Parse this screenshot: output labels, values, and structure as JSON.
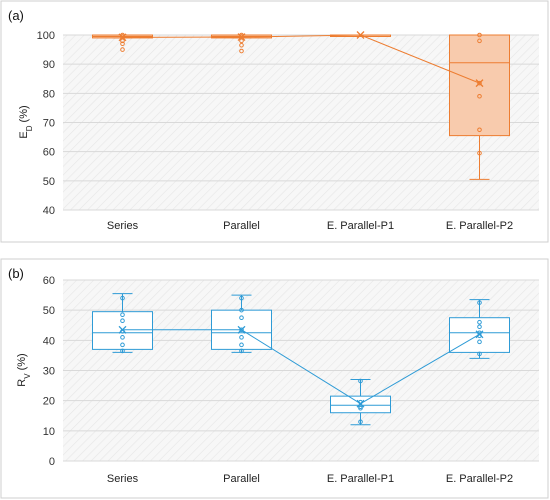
{
  "chart_data": [
    {
      "panel_label": "(a)",
      "type": "box",
      "ylabel": "E",
      "ylabel_sub": "D",
      "ylabel_unit": " (%)",
      "ylim": [
        40,
        100
      ],
      "yticks": [
        40,
        50,
        60,
        70,
        80,
        90,
        100
      ],
      "categories": [
        "Series",
        "Parallel",
        "E. Parallel-P1",
        "E. Parallel-P2"
      ],
      "color": "#ED7D31",
      "fill": "#F8CBAD",
      "grid": true,
      "boxes": [
        {
          "min": 99,
          "q1": 99,
          "median": 99.5,
          "q3": 100,
          "max": 100,
          "mean": 99.2,
          "points": [
            100,
            99.5,
            98,
            97,
            95
          ]
        },
        {
          "min": 99,
          "q1": 99,
          "median": 99.5,
          "q3": 100,
          "max": 100,
          "mean": 99.3,
          "points": [
            100,
            99.5,
            98,
            96.5,
            94.5
          ]
        },
        {
          "min": 100,
          "q1": 100,
          "median": 100,
          "q3": 100,
          "max": 100,
          "mean": 100,
          "points": []
        },
        {
          "min": 50.5,
          "q1": 65.5,
          "median": 90.5,
          "q3": 100,
          "max": 100,
          "mean": 83.5,
          "points": [
            100,
            98,
            83.5,
            79,
            67.5,
            59.5
          ]
        }
      ]
    },
    {
      "panel_label": "(b)",
      "type": "box",
      "ylabel": "R",
      "ylabel_sub": "V",
      "ylabel_unit": " (%)",
      "ylim": [
        0,
        60
      ],
      "yticks": [
        0,
        10,
        20,
        30,
        40,
        50,
        60
      ],
      "categories": [
        "Series",
        "Parallel",
        "E. Parallel-P1",
        "E. Parallel-P2"
      ],
      "color": "#2E9BD6",
      "fill": "#ffffff",
      "grid": true,
      "boxes": [
        {
          "min": 36,
          "q1": 37,
          "median": 42.5,
          "q3": 49.5,
          "max": 55.5,
          "mean": 43.5,
          "points": [
            54,
            48.5,
            46.5,
            43,
            41,
            38.5,
            36.5
          ]
        },
        {
          "min": 36,
          "q1": 37,
          "median": 42.5,
          "q3": 50,
          "max": 55,
          "mean": 43.5,
          "points": [
            54,
            50,
            47.5,
            43.5,
            41,
            38.5,
            36.5
          ]
        },
        {
          "min": 12,
          "q1": 16,
          "median": 18.5,
          "q3": 21.5,
          "max": 27,
          "mean": 19,
          "points": [
            26.5,
            19.5,
            18,
            17.5,
            13
          ]
        },
        {
          "min": 34,
          "q1": 36,
          "median": 42.5,
          "q3": 47.5,
          "max": 53.5,
          "mean": 42,
          "points": [
            52.5,
            46,
            44.5,
            42.5,
            41.5,
            39.5,
            35.5
          ]
        }
      ]
    }
  ]
}
